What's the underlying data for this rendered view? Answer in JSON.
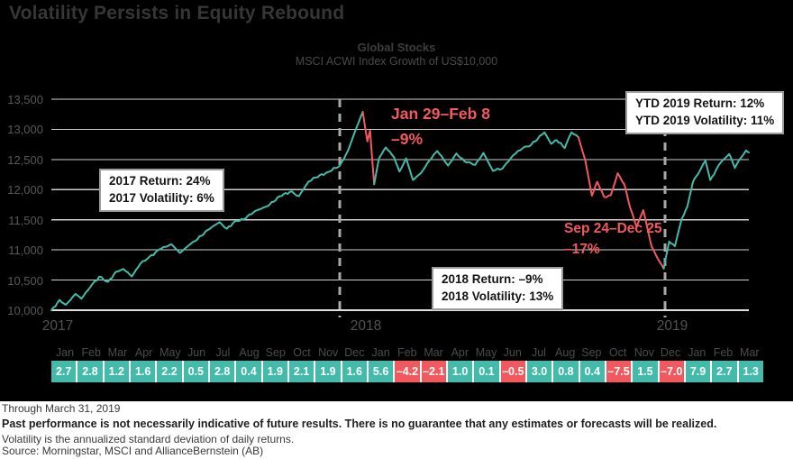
{
  "title": "Volatility Persists in Equity Rebound",
  "chart_data": {
    "type": "line",
    "title": "Global Stocks",
    "subtitle": "MSCI ACWI Index Growth of US$10,000",
    "ylim": [
      10000,
      13500
    ],
    "grid": true,
    "y_axis": {
      "ticks": [
        13500,
        13000,
        12500,
        12000,
        11500,
        11000,
        10500,
        10000
      ]
    },
    "x_axis": {
      "years": [
        "2017",
        "2018",
        "2019"
      ],
      "months_shown": 27
    },
    "colors": {
      "up": "#44BBAA",
      "down": "#F2595E",
      "grid": "#cfcfcf",
      "axis": "#e0e0e0",
      "divider": "#a8a8a8"
    },
    "series": {
      "name": "MSCI ACWI Index Growth of US$10,000",
      "segments": [
        {
          "color": "up",
          "points": [
            [
              0,
              10000
            ],
            [
              0.35,
              10170
            ],
            [
              0.6,
              10090
            ],
            [
              1,
              10270
            ],
            [
              1.25,
              10190
            ],
            [
              1.7,
              10430
            ],
            [
              2,
              10558
            ],
            [
              2.35,
              10470
            ],
            [
              2.7,
              10640
            ],
            [
              3,
              10684
            ],
            [
              3.35,
              10560
            ],
            [
              3.7,
              10770
            ],
            [
              4,
              10855
            ],
            [
              4.5,
              11010
            ],
            [
              5,
              11094
            ],
            [
              5.35,
              10950
            ],
            [
              5.7,
              11070
            ],
            [
              6,
              11150
            ],
            [
              6.5,
              11330
            ],
            [
              7,
              11462
            ],
            [
              7.3,
              11350
            ],
            [
              7.65,
              11480
            ],
            [
              8,
              11508
            ],
            [
              8.5,
              11650
            ],
            [
              9,
              11726
            ],
            [
              9.5,
              11890
            ],
            [
              10,
              11973
            ],
            [
              10.3,
              11890
            ],
            [
              10.7,
              12130
            ],
            [
              11,
              12200
            ],
            [
              11.5,
              12290
            ],
            [
              12,
              12395
            ],
            [
              12.3,
              12640
            ],
            [
              12.6,
              13010
            ],
            [
              12.85,
              13290
            ]
          ]
        },
        {
          "color": "down",
          "points": [
            [
              12.85,
              13290
            ],
            [
              13.02,
              12800
            ],
            [
              13.12,
              12980
            ],
            [
              13.27,
              12090
            ]
          ]
        },
        {
          "color": "up",
          "points": [
            [
              13.27,
              12090
            ],
            [
              13.45,
              12520
            ],
            [
              13.7,
              12700
            ],
            [
              14,
              12539
            ],
            [
              14.2,
              12300
            ],
            [
              14.45,
              12520
            ],
            [
              14.7,
              12160
            ],
            [
              15,
              12276
            ],
            [
              15.3,
              12480
            ],
            [
              15.6,
              12640
            ],
            [
              16,
              12399
            ],
            [
              16.3,
              12600
            ],
            [
              16.6,
              12470
            ],
            [
              17,
              12411
            ],
            [
              17.3,
              12610
            ],
            [
              17.65,
              12310
            ],
            [
              18,
              12349
            ],
            [
              18.4,
              12570
            ],
            [
              18.75,
              12690
            ],
            [
              19,
              12719
            ],
            [
              19.3,
              12840
            ],
            [
              19.55,
              12950
            ],
            [
              19.8,
              12760
            ],
            [
              20,
              12821
            ],
            [
              20.3,
              12690
            ],
            [
              20.55,
              12950
            ],
            [
              20.8,
              12872
            ]
          ]
        },
        {
          "color": "down",
          "points": [
            [
              20.8,
              12872
            ],
            [
              21.05,
              12500
            ],
            [
              21.3,
              11900
            ],
            [
              21.5,
              12130
            ],
            [
              21.75,
              11880
            ],
            [
              22,
              11907
            ],
            [
              22.25,
              12270
            ],
            [
              22.5,
              12086
            ],
            [
              22.72,
              11690
            ],
            [
              22.95,
              11380
            ],
            [
              23.2,
              11660
            ],
            [
              23.5,
              11060
            ],
            [
              23.75,
              10840
            ],
            [
              23.95,
              10690
            ]
          ]
        },
        {
          "color": "up",
          "points": [
            [
              23.95,
              10690
            ],
            [
              24.15,
              11140
            ],
            [
              24.35,
              11060
            ],
            [
              24.6,
              11520
            ],
            [
              24.8,
              11720
            ],
            [
              25,
              12128
            ],
            [
              25.2,
              12270
            ],
            [
              25.45,
              12480
            ],
            [
              25.62,
              12160
            ],
            [
              25.82,
              12320
            ],
            [
              26,
              12455
            ],
            [
              26.3,
              12590
            ],
            [
              26.5,
              12360
            ],
            [
              26.72,
              12530
            ],
            [
              26.9,
              12650
            ],
            [
              27,
              12617
            ]
          ]
        }
      ]
    },
    "monthly_returns": {
      "months": [
        "Jan",
        "Feb",
        "Mar",
        "Apr",
        "May",
        "Jun",
        "Jul",
        "Aug",
        "Sep",
        "Oct",
        "Nov",
        "Dec",
        "Jan",
        "Feb",
        "Mar",
        "Apr",
        "May",
        "Jun",
        "Jul",
        "Aug",
        "Sep",
        "Oct",
        "Nov",
        "Dec",
        "Jan",
        "Feb",
        "Mar"
      ],
      "values": [
        2.7,
        2.8,
        1.2,
        1.6,
        2.2,
        0.5,
        2.8,
        0.4,
        1.9,
        2.1,
        1.9,
        1.6,
        5.6,
        -4.2,
        -2.1,
        1.0,
        0.1,
        -0.5,
        3.0,
        0.8,
        0.4,
        -7.5,
        1.5,
        -7.0,
        7.9,
        2.7,
        1.3
      ]
    }
  },
  "annotations": {
    "box_2017": {
      "line1": "2017 Return: 24%",
      "line2": "2017 Volatility: 6%"
    },
    "box_2018": {
      "line1": "2018 Return: –9%",
      "line2": "2018 Volatility: 13%"
    },
    "box_ytd_2019": {
      "line1": "YTD 2019 Return: 12%",
      "line2": "YTD 2019 Volatility: 11%"
    },
    "callout_feb_2018": {
      "range": "Jan 29–Feb 8",
      "value": "–9%"
    },
    "callout_dec_2018": {
      "range": "Sep 24–Dec 25",
      "value": "–17%"
    }
  },
  "footer": {
    "through": "Through March 31, 2019",
    "disclaimer": "Past performance is not necessarily indicative of future results. There is no guarantee that any estimates or forecasts will be realized.",
    "volatility_note": "Volatility is the annualized standard deviation of daily returns.",
    "source": "Source: Morningstar, MSCI and AllianceBernstein (AB)"
  }
}
